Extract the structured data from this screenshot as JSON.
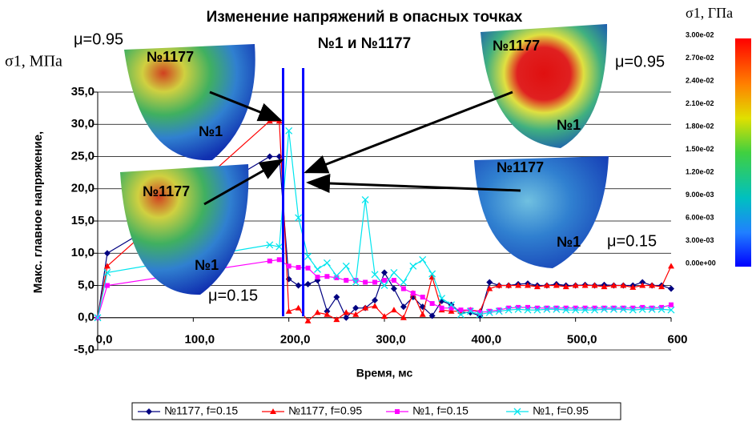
{
  "chart_data": {
    "type": "line",
    "title": [
      "Изменение напряжений в опасных точках",
      "№1 и №1177"
    ],
    "y_label": "Макс. главное напряжение,",
    "y_unit": "σ1, МПа",
    "x_label": "Время, мс",
    "x": [
      0,
      10,
      180,
      190,
      200,
      210,
      220,
      230,
      240,
      250,
      260,
      270,
      280,
      290,
      300,
      310,
      320,
      330,
      340,
      350,
      360,
      370,
      380,
      390,
      400,
      410,
      420,
      430,
      440,
      450,
      460,
      470,
      480,
      490,
      500,
      510,
      520,
      530,
      540,
      550,
      560,
      570,
      580,
      590,
      600
    ],
    "series": [
      {
        "name": "№1177, f=0.15",
        "color": "#000080",
        "marker": "diamond",
        "values": [
          0,
          10,
          25,
          25,
          6,
          5,
          5.2,
          5.8,
          1,
          3.2,
          0,
          1.5,
          1.5,
          2.7,
          7,
          4.5,
          1.7,
          3.2,
          1.7,
          0.3,
          2.6,
          2,
          0.8,
          0.8,
          0.3,
          5.5,
          5,
          5,
          5.2,
          5.3,
          5,
          5,
          5.2,
          5,
          5,
          5.1,
          5,
          5.1,
          5,
          5,
          5,
          5.5,
          5,
          5,
          4.5
        ]
      },
      {
        "name": "№1177, f=0.95",
        "color": "#ff0000",
        "marker": "triangle",
        "values": [
          0,
          8,
          30.5,
          30.5,
          1,
          1.5,
          -0.5,
          0.8,
          0.5,
          -0.3,
          0.8,
          0.5,
          1.5,
          1.8,
          0.2,
          1.2,
          0,
          3.8,
          0.5,
          6.3,
          1.2,
          1,
          1,
          1.2,
          1,
          4.5,
          5,
          5,
          5,
          5,
          4.8,
          5,
          5,
          4.8,
          5,
          5,
          5,
          4.8,
          5,
          5,
          4.7,
          5,
          5,
          4.8,
          8
        ]
      },
      {
        "name": "№1, f=0.15",
        "color": "#ff00ff",
        "marker": "square",
        "values": [
          0,
          5,
          8.8,
          9,
          8,
          7.8,
          7.7,
          6.3,
          6.4,
          6.2,
          5.8,
          5.8,
          5.5,
          5.5,
          5.8,
          5.8,
          4.5,
          3.8,
          3.2,
          2.2,
          1.5,
          1.5,
          1.2,
          1.2,
          0.8,
          1,
          1.2,
          1.5,
          1.6,
          1.6,
          1.5,
          1.5,
          1.5,
          1.5,
          1.5,
          1.5,
          1.5,
          1.5,
          1.5,
          1.5,
          1.5,
          1.6,
          1.5,
          1.6,
          2
        ]
      },
      {
        "name": "№1, f=0.95",
        "color": "#00e5ee",
        "marker": "cross",
        "values": [
          0,
          7,
          11.3,
          11,
          29,
          15.5,
          9.5,
          7.5,
          8.5,
          6.5,
          8,
          5.5,
          18.3,
          6.7,
          5,
          7,
          5.5,
          8,
          9,
          6.8,
          3,
          2,
          0.5,
          1,
          0.5,
          0.8,
          1,
          1.2,
          1.3,
          1.2,
          1.2,
          1.3,
          1.3,
          1.2,
          1.2,
          1.2,
          1.2,
          1.3,
          1.3,
          1.3,
          1.2,
          1.3,
          1.3,
          1.3,
          1.2
        ]
      }
    ],
    "vertical_lines": [
      194,
      215
    ],
    "xlim": [
      0,
      600
    ],
    "ylim": [
      -5,
      35
    ],
    "xticks": [
      {
        "value": 0,
        "label": "0,0"
      },
      {
        "value": 100,
        "label": "100,0"
      },
      {
        "value": 200,
        "label": "200,0"
      },
      {
        "value": 300,
        "label": "300,0"
      },
      {
        "value": 400,
        "label": "400,0"
      },
      {
        "value": 500,
        "label": "500,0"
      },
      {
        "value": 600,
        "label": "600"
      }
    ],
    "yticks": [
      {
        "value": -5,
        "label": "-5,0"
      },
      {
        "value": 0,
        "label": "0,0"
      },
      {
        "value": 5,
        "label": "5,0"
      },
      {
        "value": 10,
        "label": "10,0"
      },
      {
        "value": 15,
        "label": "15,0"
      },
      {
        "value": 20,
        "label": "20,0"
      },
      {
        "value": 25,
        "label": "25,0"
      },
      {
        "value": 30,
        "label": "30,0"
      },
      {
        "value": 35,
        "label": "35,0"
      }
    ],
    "grid": true,
    "legend": "bottom",
    "annotations": [
      "μ=0.95",
      "№1177",
      "№1",
      "№1177",
      "№1",
      "μ=0.15",
      "№1177",
      "№1",
      "μ=0.95",
      "№1177",
      "№1",
      "μ=0.15"
    ],
    "colorbar": {
      "label": "σ1, ГПа",
      "ticks": [
        "3.00e-02",
        "2.70e-02",
        "2.40e-02",
        "2.10e-02",
        "1.80e-02",
        "1.50e-02",
        "1.20e-02",
        "9.00e-03",
        "6.00e-03",
        "3.00e-03",
        "0.00e+00"
      ]
    }
  }
}
